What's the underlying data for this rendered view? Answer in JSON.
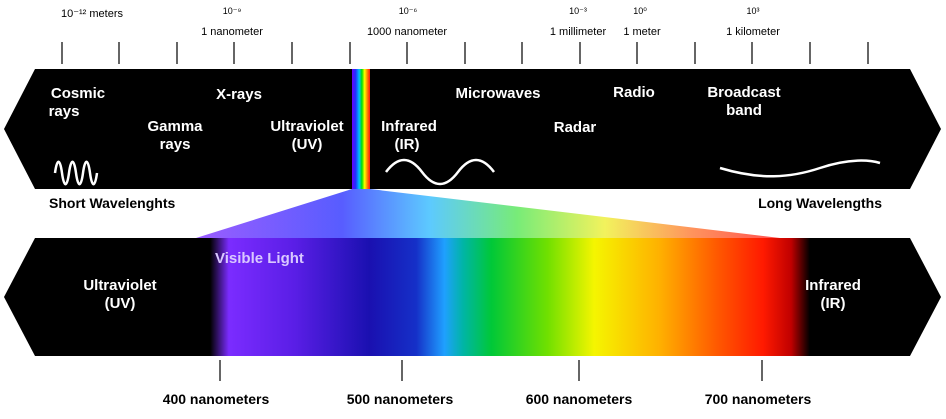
{
  "scale": {
    "items": [
      {
        "exp": "10⁻¹² meters",
        "unit": ""
      },
      {
        "exp": "10⁻⁹",
        "unit": "1 nanometer"
      },
      {
        "exp": "10⁻⁶",
        "unit": "1000 nanometer"
      },
      {
        "exp": "10⁻³",
        "unit": "1 millimeter"
      },
      {
        "exp": "10⁰",
        "unit": "1 meter"
      },
      {
        "exp": "10³",
        "unit": "1 kilometer"
      }
    ]
  },
  "top_band": {
    "cosmic": [
      "Cosmic",
      "rays"
    ],
    "gamma": [
      "Gamma",
      "rays"
    ],
    "xrays": "X-rays",
    "uv": [
      "Ultraviolet",
      "(UV)"
    ],
    "ir": [
      "Infrared",
      "(IR)"
    ],
    "microwaves": "Microwaves",
    "radar": "Radar",
    "radio": "Radio",
    "broadcast": [
      "Broadcast",
      "band"
    ]
  },
  "short_wl": "Short Wavelenghts",
  "long_wl": "Long Wavelengths",
  "bottom_band": {
    "uv": [
      "Ultraviolet",
      "(UV)"
    ],
    "visible": "Visible Light",
    "ir": [
      "Infrared",
      "(IR)"
    ]
  },
  "nm_labels": [
    "400 nanometers",
    "500 nanometers",
    "600 nanometers",
    "700 nanometers"
  ]
}
